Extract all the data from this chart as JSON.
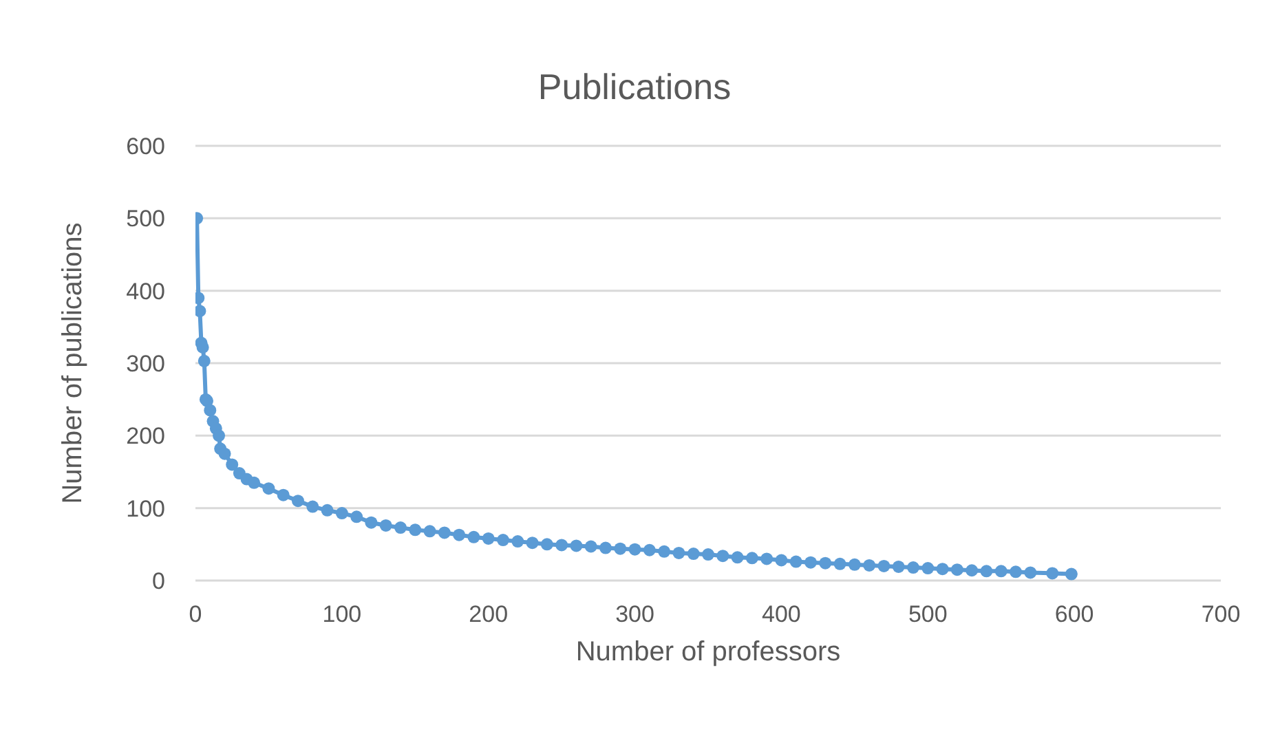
{
  "chart_data": {
    "type": "line",
    "title": "Publications",
    "xlabel": "Number of professors",
    "ylabel": "Number of publications",
    "marker": "circle",
    "grid": "y",
    "xlim": [
      0,
      700
    ],
    "xticks": [
      0,
      100,
      200,
      300,
      400,
      500,
      600,
      700
    ],
    "ylim": [
      0,
      600
    ],
    "yticks": [
      0,
      100,
      200,
      300,
      400,
      500,
      600
    ],
    "x": [
      1,
      2,
      3,
      4,
      5,
      6,
      7,
      8,
      10,
      12,
      14,
      16,
      17,
      20,
      25,
      30,
      35,
      40,
      50,
      60,
      70,
      80,
      90,
      100,
      110,
      120,
      130,
      140,
      150,
      160,
      170,
      180,
      190,
      200,
      210,
      220,
      230,
      240,
      250,
      260,
      270,
      280,
      290,
      300,
      310,
      320,
      330,
      340,
      350,
      360,
      370,
      380,
      390,
      400,
      410,
      420,
      430,
      440,
      450,
      460,
      470,
      480,
      490,
      500,
      510,
      520,
      530,
      540,
      550,
      560,
      570,
      585,
      598
    ],
    "series": [
      {
        "color": "#5b9bd5",
        "values": [
          500,
          390,
          372,
          328,
          322,
          303,
          250,
          248,
          235,
          220,
          210,
          200,
          182,
          175,
          160,
          148,
          140,
          135,
          127,
          118,
          110,
          102,
          97,
          93,
          88,
          80,
          76,
          73,
          70,
          68,
          66,
          63,
          60,
          58,
          56,
          54,
          52,
          50,
          49,
          48,
          47,
          45,
          44,
          43,
          42,
          40,
          38,
          37,
          36,
          34,
          32,
          31,
          30,
          28,
          26,
          25,
          24,
          23,
          22,
          21,
          20,
          19,
          18,
          17,
          16,
          15,
          14,
          13,
          13,
          12,
          11,
          10,
          9
        ]
      }
    ]
  }
}
